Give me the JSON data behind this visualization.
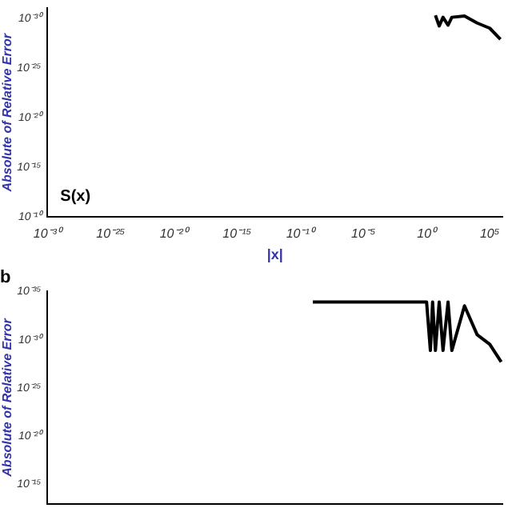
{
  "chart_data": [
    {
      "type": "line",
      "xlabel": "|x|",
      "ylabel": "Absolute of Relative Error",
      "annotations": [
        "S(x)"
      ],
      "log": "xy",
      "x": [
        5,
        10,
        20,
        50,
        100,
        1000,
        10000,
        100000,
        700000
      ],
      "series": [
        {
          "color": "#000000",
          "values": [
            5e-31,
            6e-30,
            8e-31,
            5e-30,
            8e-31,
            6e-31,
            3e-30,
            1e-29,
            1.3e-28
          ]
        }
      ],
      "xlim": [
        1e-30,
        1000000.0
      ],
      "ylim": [
        1e-10,
        1e-31
      ],
      "xticks": [
        {
          "value": 1e-30,
          "label": "10⁻³⁰"
        },
        {
          "value": 1e-25,
          "label": "10⁻²⁵"
        },
        {
          "value": 1e-20,
          "label": "10⁻²⁰"
        },
        {
          "value": 1e-15,
          "label": "10⁻¹⁵"
        },
        {
          "value": 1e-10,
          "label": "10⁻¹⁰"
        },
        {
          "value": 1e-05,
          "label": "10⁻⁵"
        },
        {
          "value": 1,
          "label": "10⁰"
        },
        {
          "value": 100000,
          "label": "10⁵"
        }
      ],
      "yticks": [
        {
          "value": 1e-10,
          "label": "10⁻¹⁰"
        },
        {
          "value": 1e-15,
          "label": "10⁻¹⁵"
        },
        {
          "value": 1e-20,
          "label": "10⁻²⁰"
        },
        {
          "value": 1e-25,
          "label": "10⁻²⁵"
        },
        {
          "value": 1e-30,
          "label": "10⁻³⁰"
        }
      ]
    },
    {
      "type": "line",
      "title": "b",
      "ylabel": "Absolute of Relative Error",
      "log": "xy",
      "tick_labels": "y",
      "x": [
        1e-09,
        1e-06,
        0.001,
        1,
        2,
        3,
        5,
        10,
        20,
        50,
        100,
        1000,
        10000,
        100000,
        800000
      ],
      "series": [
        {
          "color": "#000000",
          "values": [
            1.2e-34,
            1.2e-34,
            1.2e-34,
            1.2e-34,
            1.3e-29,
            1.2e-34,
            1.3e-29,
            1.2e-34,
            1.3e-29,
            1.2e-34,
            1.3e-29,
            3e-34,
            3e-31,
            3e-30,
            2e-28
          ]
        }
      ],
      "xlim": [
        1e-30,
        1000000.0
      ],
      "ylim": [
        1e-13,
        1e-35
      ],
      "yticks": [
        {
          "value": 1e-15,
          "label": "10⁻¹⁵"
        },
        {
          "value": 1e-20,
          "label": "10⁻²⁰"
        },
        {
          "value": 1e-25,
          "label": "10⁻²⁵"
        },
        {
          "value": 1e-30,
          "label": "10⁻³⁰"
        },
        {
          "value": 1e-35,
          "label": "10⁻³⁵"
        }
      ]
    }
  ]
}
